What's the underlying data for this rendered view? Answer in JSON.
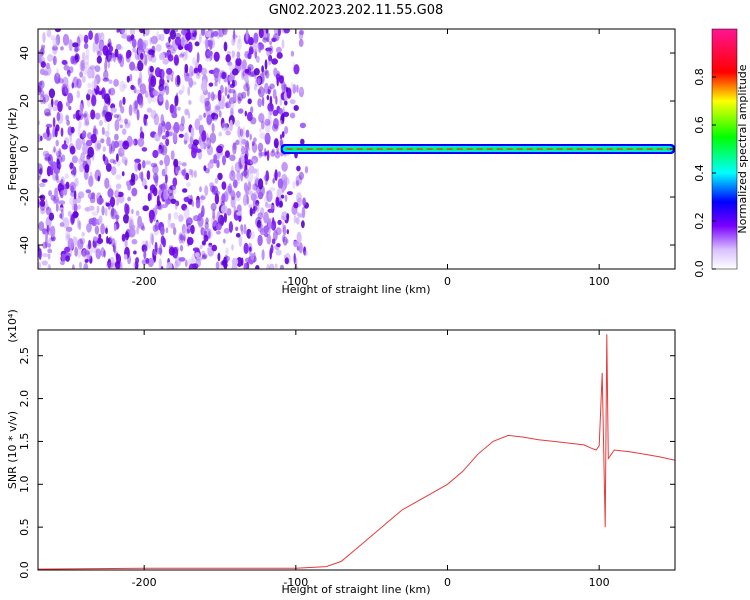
{
  "chart_data": [
    {
      "type": "heatmap",
      "title": "GN02.2023.202.11.55.G08",
      "xlabel": "Height of straight line (km)",
      "ylabel": "Frequency (Hz)",
      "xlim": [
        -270,
        150
      ],
      "ylim": [
        -50,
        50
      ],
      "xticks": [
        "-200",
        "-100",
        "0",
        "100"
      ],
      "yticks": [
        "-40",
        "-20",
        "0",
        "20",
        "40"
      ],
      "colorbar": {
        "label": "Normalized spectral amplitude",
        "range": [
          0.0,
          1.0
        ],
        "ticks": [
          "0.0",
          "0.2",
          "0.4",
          "0.6",
          "0.8"
        ]
      },
      "features": [
        {
          "kind": "noise",
          "x": [
            -270,
            -100
          ],
          "y": [
            -50,
            50
          ]
        },
        {
          "kind": "signal_band",
          "x": [
            -110,
            150
          ],
          "frequency": 0
        }
      ]
    },
    {
      "type": "line",
      "xlabel": "Height of straight line (km)",
      "ylabel": "SNR (10 * v/v)",
      "ylabel_scale": "(x10⁴)",
      "xlim": [
        -270,
        150
      ],
      "ylim": [
        0,
        2.8
      ],
      "xticks": [
        "-200",
        "-100",
        "0",
        "100"
      ],
      "yticks": [
        "0.0",
        "0.5",
        "1.0",
        "1.5",
        "2.0",
        "2.5"
      ],
      "series": [
        {
          "color": "#e83a3a",
          "x": [
            -270,
            -200,
            -150,
            -100,
            -80,
            -70,
            -60,
            -50,
            -40,
            -30,
            -20,
            -10,
            0,
            10,
            20,
            30,
            40,
            50,
            60,
            70,
            80,
            90,
            95,
            98,
            100,
            102,
            104,
            105,
            106,
            110,
            120,
            130,
            140,
            150
          ],
          "y": [
            0.01,
            0.02,
            0.02,
            0.02,
            0.04,
            0.1,
            0.25,
            0.4,
            0.55,
            0.7,
            0.8,
            0.9,
            1.0,
            1.15,
            1.35,
            1.5,
            1.57,
            1.55,
            1.52,
            1.5,
            1.48,
            1.46,
            1.42,
            1.4,
            1.45,
            2.3,
            0.5,
            2.75,
            1.3,
            1.4,
            1.38,
            1.35,
            1.32,
            1.28
          ]
        }
      ]
    }
  ]
}
